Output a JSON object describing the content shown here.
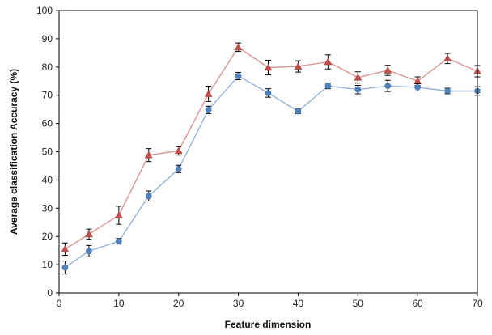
{
  "chart_data": {
    "type": "line",
    "title": "",
    "xlabel": "Feature dimension",
    "ylabel": "Average classification Accuracy (%)",
    "xlim": [
      0,
      70
    ],
    "ylim": [
      0,
      100
    ],
    "xticks": [
      0,
      10,
      20,
      30,
      40,
      50,
      60,
      70
    ],
    "yticks": [
      0,
      10,
      20,
      30,
      40,
      50,
      60,
      70,
      80,
      90,
      100
    ],
    "grid": false,
    "legend": "none",
    "x": [
      1,
      5,
      10,
      15,
      20,
      25,
      30,
      35,
      40,
      45,
      50,
      55,
      60,
      65,
      70
    ],
    "series": [
      {
        "marker": "triangle",
        "color": "#c0504d",
        "line_color": "#d99694",
        "values": [
          15.5,
          20.8,
          27.5,
          48.8,
          50.3,
          70.5,
          87.0,
          79.8,
          80.2,
          81.8,
          76.3,
          78.8,
          75.0,
          83.0,
          78.5
        ],
        "errors": [
          2.2,
          1.8,
          3.2,
          2.3,
          1.5,
          2.7,
          1.5,
          2.6,
          2.0,
          2.5,
          2.0,
          1.8,
          1.5,
          1.8,
          2.0
        ]
      },
      {
        "marker": "circle",
        "color": "#4f81bd",
        "line_color": "#95b3d7",
        "values": [
          9.0,
          14.8,
          18.3,
          34.3,
          43.9,
          64.8,
          76.8,
          70.8,
          64.3,
          73.3,
          72.0,
          73.3,
          72.8,
          71.5,
          71.5
        ],
        "errors": [
          2.3,
          2.0,
          1.0,
          1.8,
          1.3,
          1.3,
          1.3,
          1.5,
          0.8,
          1.0,
          1.5,
          2.0,
          1.3,
          1.0,
          1.5
        ]
      }
    ]
  }
}
